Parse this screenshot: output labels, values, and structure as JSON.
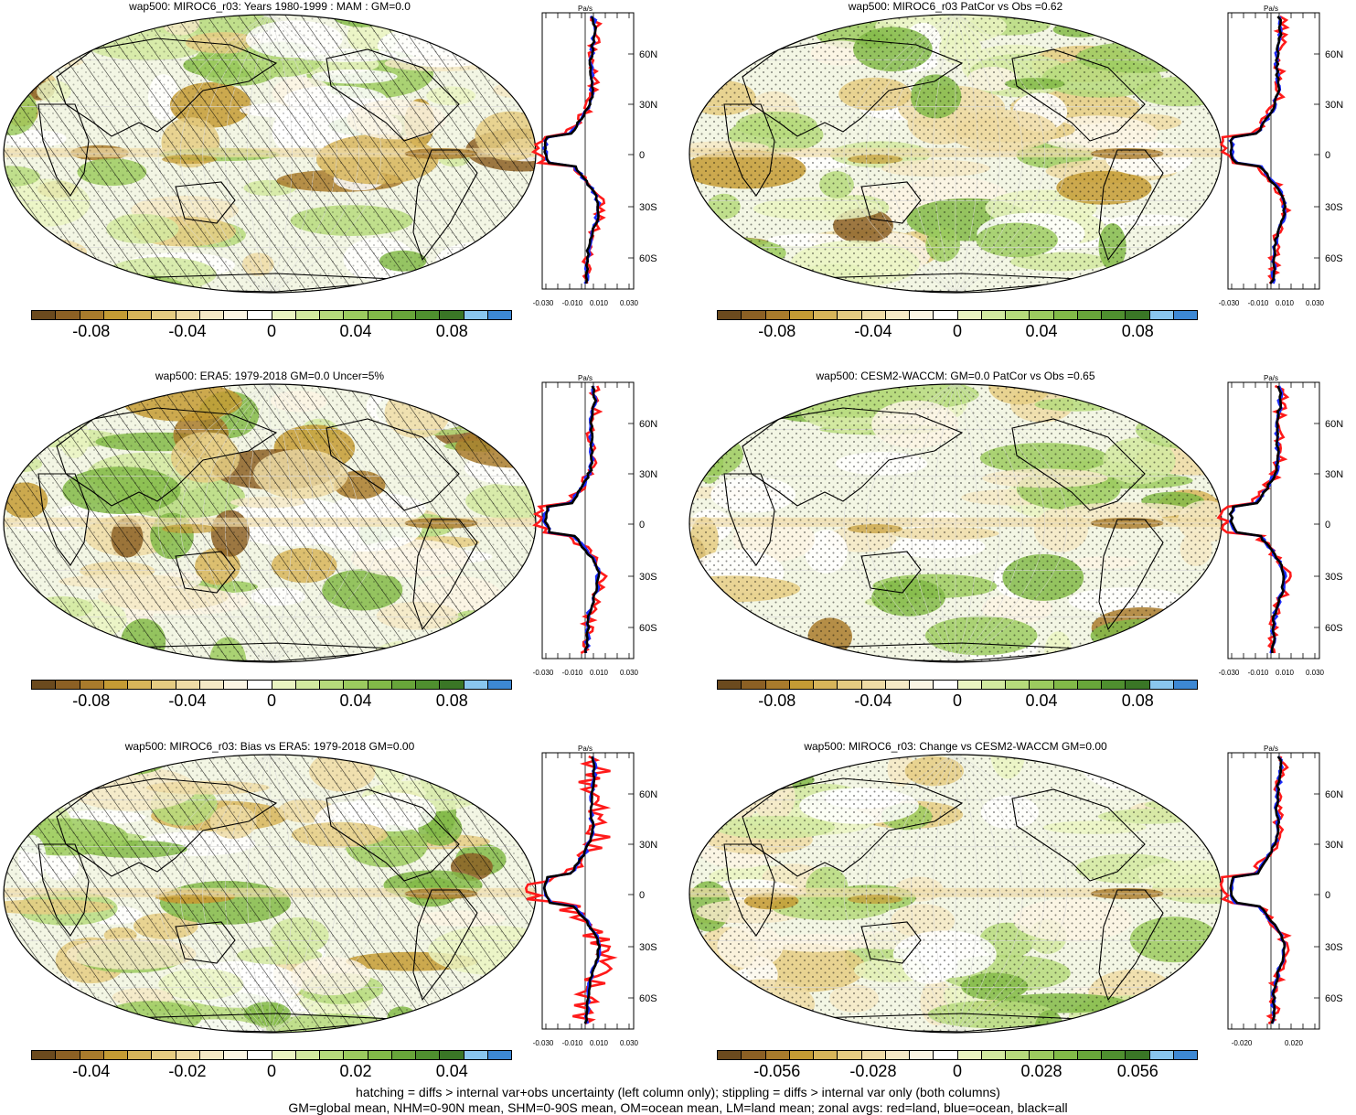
{
  "colors": [
    "#6b4a1e",
    "#8c6024",
    "#a97b2c",
    "#c49b34",
    "#d7b55a",
    "#e5cc82",
    "#efdca6",
    "#f5e9c6",
    "#fbf5e4",
    "#ffffff",
    "#eaf4c2",
    "#d2e9a0",
    "#b6da7c",
    "#9ccb5f",
    "#82ba48",
    "#68a53a",
    "#4f8f2f",
    "#3a7626",
    "#89c6ee",
    "#3d88d4"
  ],
  "zonal_axis": {
    "unit": "Pa/s",
    "lat_labels": [
      "60N",
      "30N",
      "0",
      "30S",
      "60S"
    ]
  },
  "panels": [
    {
      "title": "wap500: MIROC6_r03: Years 1980-1999 : MAM : GM=0.0",
      "cbar_labels": [
        "-0.08",
        "-0.04",
        "0",
        "0.04",
        "0.08"
      ],
      "x_labels": [
        "-0.030",
        "-0.010",
        "0.010",
        "0.030"
      ],
      "hatch": true
    },
    {
      "title": "wap500: MIROC6_r03 PatCor vs Obs =0.62",
      "cbar_labels": [
        "-0.08",
        "-0.04",
        "0",
        "0.04",
        "0.08"
      ],
      "x_labels": [
        "-0.030",
        "-0.010",
        "0.010",
        "0.030"
      ],
      "hatch": false
    },
    {
      "title": "wap500: ERA5: 1979-2018 GM=0.0 Uncer=5%",
      "cbar_labels": [
        "-0.08",
        "-0.04",
        "0",
        "0.04",
        "0.08"
      ],
      "x_labels": [
        "-0.030",
        "-0.010",
        "0.010",
        "0.030"
      ],
      "hatch": true
    },
    {
      "title": "wap500: CESM2-WACCM: GM=0.0 PatCor vs Obs =0.65",
      "cbar_labels": [
        "-0.08",
        "-0.04",
        "0",
        "0.04",
        "0.08"
      ],
      "x_labels": [
        "-0.030",
        "-0.010",
        "0.010",
        "0.030"
      ],
      "hatch": false
    },
    {
      "title": "wap500: MIROC6_r03: Bias vs ERA5: 1979-2018 GM=0.00",
      "cbar_labels": [
        "-0.04",
        "-0.02",
        "0",
        "0.02",
        "0.04"
      ],
      "x_labels": [
        "-0.030",
        "-0.010",
        "0.010",
        "0.030"
      ],
      "hatch": true
    },
    {
      "title": "wap500: MIROC6_r03: Change vs CESM2-WACCM GM=0.00",
      "cbar_labels": [
        "-0.056",
        "-0.028",
        "0",
        "0.028",
        "0.056"
      ],
      "x_labels": [
        "-0.020",
        "0.020"
      ],
      "hatch": false
    }
  ],
  "footer": {
    "line1": "hatching = diffs > internal var+obs uncertainty (left column only); stippling = diffs > internal var only (both columns)",
    "line2": "GM=global mean, NHM=0-90N mean, SHM=0-90S mean, OM=ocean mean, LM=land mean; zonal avgs: red=land, blue=ocean, black=all"
  }
}
